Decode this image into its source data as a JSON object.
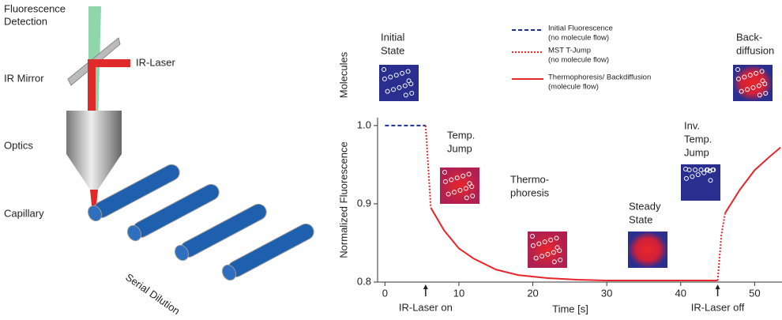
{
  "diagram": {
    "labels": {
      "detection": [
        "Fluorescence",
        "Detection"
      ],
      "laser": "IR-Laser",
      "mirror": "IR Mirror",
      "optics": "Optics",
      "capillary": "Capillary",
      "dilution": "Serial Dilution"
    }
  },
  "chart_data": {
    "type": "line",
    "row_label": "Molecules",
    "ylabel": "Normalized Fluorescence",
    "xlabel": "Time [s]",
    "xlim": [
      -1,
      53.7
    ],
    "xticks": [
      0,
      10,
      20,
      30,
      40,
      50
    ],
    "ylim": [
      0.8,
      1.01
    ],
    "yticks": [
      0.8,
      0.9,
      {
        "value": 1,
        "label": "1.0"
      }
    ],
    "series": [
      {
        "name": "Initial Fluorescence",
        "detail": "(no molecule flow)",
        "color": "#1f2f8f",
        "dash": "dashed",
        "x": [
          0,
          5.5
        ],
        "values": [
          1,
          1
        ]
      },
      {
        "name": "MST T-Jump",
        "detail": "(no molecule flow)",
        "color": "#e8262a",
        "dash": "dotted",
        "x": [
          5.5,
          6.2,
          null,
          45,
          45.5,
          46
        ],
        "values": [
          1,
          0.895,
          null,
          0.802,
          0.86,
          0.888
        ]
      },
      {
        "name": "Thermophoresis/ Backdiffusion",
        "detail": "(molecule flow)",
        "color": "#e8262a",
        "dash": "solid",
        "x": [
          6.2,
          8,
          10,
          12,
          15,
          18,
          22,
          26,
          30,
          35,
          40,
          45,
          null,
          46,
          48,
          50,
          52,
          53.5
        ],
        "values": [
          0.895,
          0.866,
          0.843,
          0.83,
          0.816,
          0.809,
          0.805,
          0.803,
          0.802,
          0.802,
          0.802,
          0.802,
          null,
          0.888,
          0.918,
          0.943,
          0.96,
          0.972
        ]
      }
    ],
    "annotations": [
      {
        "text": "IR-Laser on",
        "x": 5.5
      },
      {
        "text": "IR-Laser off",
        "x": 45
      }
    ],
    "states": [
      {
        "lines": [
          "Initial",
          "State"
        ]
      },
      {
        "lines": [
          "Temp.",
          "Jump"
        ]
      },
      {
        "lines": [
          "Thermo-",
          "phoresis"
        ]
      },
      {
        "lines": [
          "Steady",
          "State"
        ]
      },
      {
        "lines": [
          "Inv.",
          "Temp.",
          "Jump"
        ]
      },
      {
        "lines": [
          "Back-",
          "diffusion"
        ]
      }
    ]
  }
}
